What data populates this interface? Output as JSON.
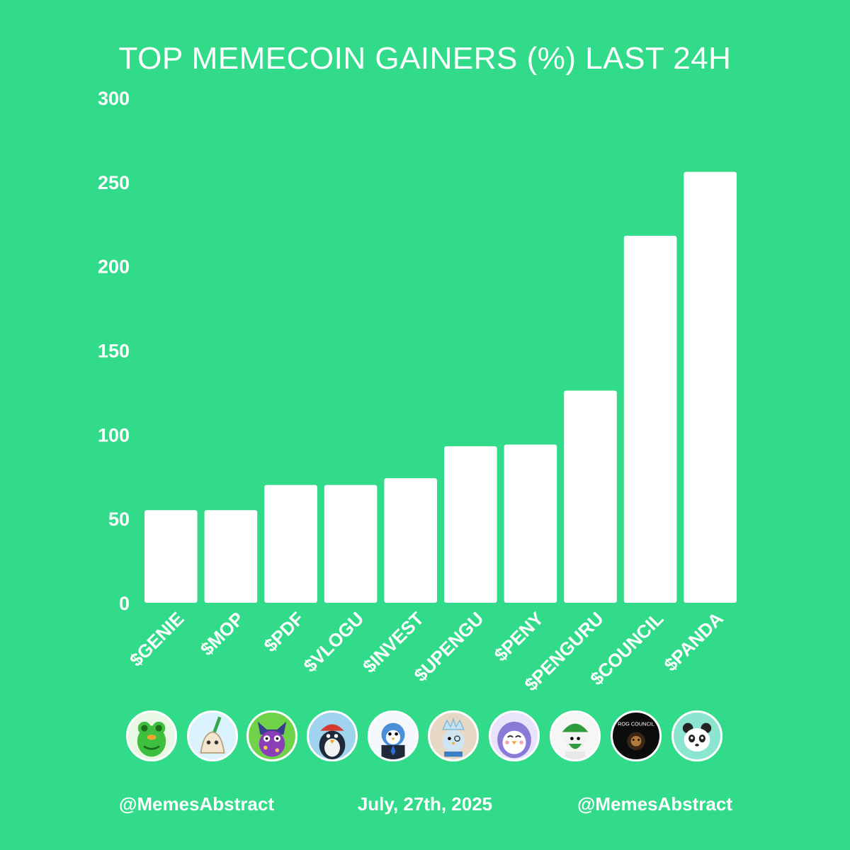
{
  "chart_data": {
    "type": "bar",
    "title": "TOP MEMECOIN GAINERS (%) LAST 24H",
    "categories": [
      "$GENIE",
      "$MOP",
      "$PDF",
      "$VLOGU",
      "$INVEST",
      "$UPENGU",
      "$PENY",
      "$PENGURU",
      "$COUNCIL",
      "$PANDA"
    ],
    "values": [
      55,
      55,
      70,
      70,
      74,
      93,
      94,
      126,
      218,
      256
    ],
    "ylim": [
      0,
      300
    ],
    "yticks": [
      0,
      50,
      100,
      150,
      200,
      250,
      300
    ],
    "bar_color": "#ffffff",
    "background_color": "#32db89",
    "grid": false,
    "legend": "none"
  },
  "avatars": [
    {
      "icon": "green-frog-icon"
    },
    {
      "icon": "mop-icon"
    },
    {
      "icon": "purple-creature-icon"
    },
    {
      "icon": "penguin-red-hat-icon"
    },
    {
      "icon": "penguin-suit-icon"
    },
    {
      "icon": "penguin-crown-icon"
    },
    {
      "icon": "purple-penguin-icon"
    },
    {
      "icon": "green-turban-penguin-icon"
    },
    {
      "icon": "rog-council-icon",
      "text": "ROG COUNCIL"
    },
    {
      "icon": "panda-icon"
    }
  ],
  "footer": {
    "left": "@MemesAbstract",
    "center": "July, 27th, 2025",
    "right": "@MemesAbstract"
  }
}
